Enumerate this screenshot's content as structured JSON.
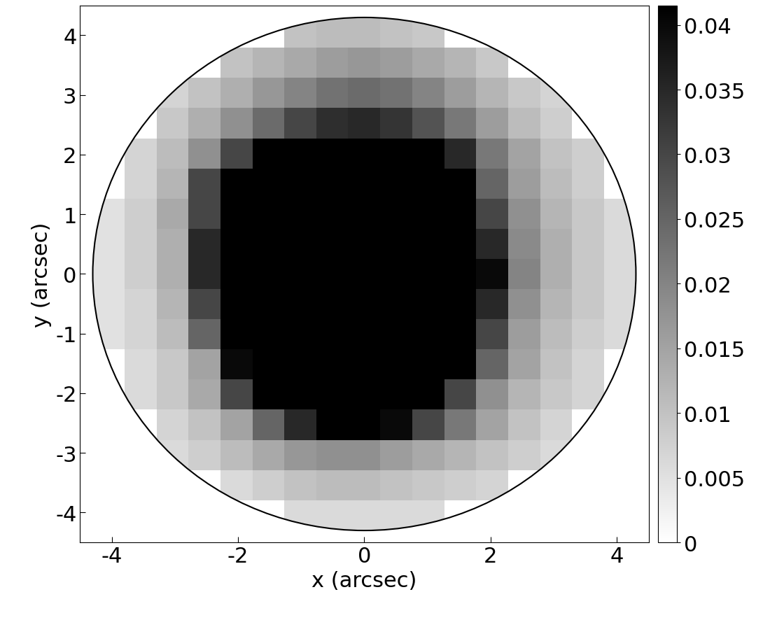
{
  "chart_data": {
    "type": "heatmap",
    "x_label": "x (arcsec)",
    "y_label": "y (arcsec)",
    "xlim": [
      -4.5,
      4.5
    ],
    "ylim": [
      -4.5,
      4.5
    ],
    "xticks": [
      -4,
      -2,
      0,
      2,
      4
    ],
    "yticks": [
      -4,
      -3,
      -2,
      -1,
      0,
      1,
      2,
      3,
      4
    ],
    "radius": 4.3,
    "x": [
      -4.05,
      -3.54,
      -3.04,
      -2.53,
      -2.02,
      -1.52,
      -1.01,
      -0.51,
      0,
      0.51,
      1.01,
      1.52,
      2.02,
      2.53,
      3.04,
      3.54,
      4.05
    ],
    "y": [
      -4.05,
      -3.54,
      -3.04,
      -2.53,
      -2.02,
      -1.52,
      -1.01,
      -0.51,
      0,
      0.51,
      1.01,
      1.52,
      2.02,
      2.53,
      3.04,
      3.54,
      4.05
    ],
    "cells": [
      [
        null,
        null,
        null,
        null,
        null,
        null,
        0.006,
        0.006,
        0.006,
        0.006,
        0.006,
        null,
        null,
        null,
        null,
        null,
        null
      ],
      [
        null,
        null,
        null,
        null,
        0.006,
        0.008,
        0.01,
        0.011,
        0.011,
        0.01,
        0.009,
        0.008,
        0.007,
        null,
        null,
        null,
        null
      ],
      [
        null,
        null,
        0.006,
        0.008,
        0.011,
        0.014,
        0.017,
        0.018,
        0.018,
        0.016,
        0.014,
        0.012,
        0.01,
        0.008,
        0.006,
        null,
        null
      ],
      [
        null,
        null,
        0.007,
        0.01,
        0.015,
        0.025,
        0.035,
        0.045,
        0.045,
        0.04,
        0.03,
        0.022,
        0.015,
        0.01,
        0.007,
        null,
        null
      ],
      [
        null,
        0.006,
        0.009,
        0.014,
        0.03,
        0.06,
        0.06,
        0.06,
        0.06,
        0.06,
        0.045,
        0.03,
        0.018,
        0.012,
        0.009,
        0.007,
        null
      ],
      [
        null,
        0.006,
        0.009,
        0.015,
        0.04,
        0.06,
        0.06,
        0.06,
        0.06,
        0.06,
        0.06,
        0.06,
        0.025,
        0.015,
        0.01,
        0.007,
        null
      ],
      [
        0.005,
        0.007,
        0.011,
        0.025,
        0.06,
        0.06,
        0.06,
        0.06,
        0.06,
        0.06,
        0.06,
        0.06,
        0.03,
        0.016,
        0.011,
        0.008,
        0.006
      ],
      [
        0.005,
        0.007,
        0.012,
        0.03,
        0.06,
        0.06,
        0.06,
        0.06,
        0.06,
        0.06,
        0.06,
        0.06,
        0.035,
        0.018,
        0.012,
        0.009,
        0.006
      ],
      [
        0.005,
        0.008,
        0.013,
        0.035,
        0.06,
        0.06,
        0.06,
        0.06,
        0.06,
        0.06,
        0.06,
        0.06,
        0.04,
        0.02,
        0.013,
        0.009,
        0.006
      ],
      [
        0.005,
        0.008,
        0.013,
        0.035,
        0.06,
        0.06,
        0.06,
        0.06,
        0.06,
        0.06,
        0.06,
        0.06,
        0.035,
        0.019,
        0.013,
        0.009,
        0.006
      ],
      [
        0.005,
        0.008,
        0.014,
        0.03,
        0.06,
        0.06,
        0.06,
        0.06,
        0.06,
        0.06,
        0.06,
        0.06,
        0.03,
        0.018,
        0.012,
        0.009,
        0.006
      ],
      [
        null,
        0.007,
        0.012,
        0.03,
        0.06,
        0.06,
        0.06,
        0.06,
        0.06,
        0.06,
        0.06,
        0.06,
        0.025,
        0.016,
        0.011,
        0.008,
        null
      ],
      [
        null,
        0.007,
        0.011,
        0.018,
        0.03,
        0.045,
        0.06,
        0.06,
        0.06,
        0.06,
        0.05,
        0.035,
        0.022,
        0.015,
        0.01,
        0.008,
        null
      ],
      [
        null,
        null,
        0.009,
        0.013,
        0.018,
        0.024,
        0.03,
        0.034,
        0.035,
        0.033,
        0.028,
        0.022,
        0.016,
        0.011,
        0.008,
        null,
        null
      ],
      [
        null,
        null,
        0.007,
        0.01,
        0.013,
        0.017,
        0.02,
        0.023,
        0.024,
        0.023,
        0.02,
        0.016,
        0.012,
        0.009,
        0.007,
        null,
        null
      ],
      [
        null,
        null,
        null,
        null,
        0.01,
        0.012,
        0.014,
        0.016,
        0.017,
        0.016,
        0.014,
        0.012,
        0.009,
        null,
        null,
        null,
        null
      ],
      [
        null,
        null,
        null,
        null,
        null,
        null,
        0.01,
        0.011,
        0.011,
        0.01,
        0.009,
        null,
        null,
        null,
        null,
        null,
        null
      ]
    ],
    "colorbar_range": [
      0,
      0.0415
    ],
    "colorbar_ticks": [
      0,
      0.005,
      0.01,
      0.015,
      0.02,
      0.025,
      0.03,
      0.035,
      0.04
    ]
  }
}
